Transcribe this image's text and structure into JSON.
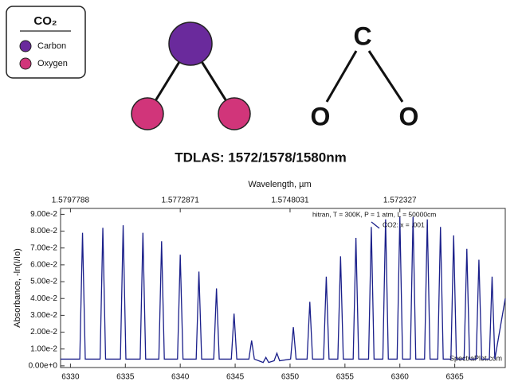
{
  "diagram": {
    "legend_title": "CO₂",
    "legend_items": [
      "Carbon",
      "Oxygen"
    ],
    "structure_atoms": [
      "C",
      "O",
      "O"
    ]
  },
  "chart_data": {
    "type": "line",
    "title": "TDLAS: 1572/1578/1580nm",
    "x2_label": "Wavelength, µm",
    "y_label": "Absorbance, -ln(I/Io)",
    "annotation": "hitran, T = 300K, P = 1 atm, L = 50000cm",
    "watermark": "SpectraPlot.com",
    "legend": "top-right",
    "x": [
      6329.1,
      6330.85,
      6331.1,
      6331.35,
      6332.7,
      6332.95,
      6333.2,
      6334.55,
      6334.8,
      6335.05,
      6336.35,
      6336.6,
      6336.85,
      6338.05,
      6338.3,
      6338.55,
      6339.75,
      6340.0,
      6340.25,
      6341.45,
      6341.7,
      6341.95,
      6343.05,
      6343.3,
      6343.55,
      6344.65,
      6344.9,
      6345.15,
      6346.25,
      6346.5,
      6346.75,
      6347.55,
      6347.8,
      6348.05,
      6348.55,
      6348.8,
      6349.05,
      6350.05,
      6350.3,
      6350.55,
      6351.55,
      6351.8,
      6352.05,
      6353.05,
      6353.3,
      6353.55,
      6354.35,
      6354.6,
      6354.85,
      6355.75,
      6356.0,
      6356.25,
      6357.15,
      6357.4,
      6357.65,
      6358.45,
      6358.7,
      6358.95,
      6359.75,
      6360.0,
      6360.25,
      6360.95,
      6361.2,
      6361.45,
      6362.25,
      6362.5,
      6362.75,
      6363.45,
      6363.7,
      6363.95,
      6364.65,
      6364.9,
      6365.15,
      6365.85,
      6366.1,
      6366.35,
      6366.95,
      6367.2,
      6367.45,
      6368.15,
      6368.4,
      6368.65,
      6369.6
    ],
    "series": [
      {
        "name": "CO2: x = .001",
        "color": "#1a1f8a",
        "values": [
          0.004,
          0.004,
          0.079,
          0.004,
          0.004,
          0.082,
          0.004,
          0.004,
          0.0835,
          0.004,
          0.004,
          0.079,
          0.004,
          0.004,
          0.074,
          0.004,
          0.004,
          0.066,
          0.004,
          0.004,
          0.056,
          0.004,
          0.004,
          0.046,
          0.004,
          0.004,
          0.031,
          0.004,
          0.004,
          0.015,
          0.004,
          0.002,
          0.005,
          0.002,
          0.003,
          0.0075,
          0.003,
          0.004,
          0.023,
          0.004,
          0.004,
          0.038,
          0.004,
          0.004,
          0.053,
          0.004,
          0.004,
          0.065,
          0.004,
          0.004,
          0.076,
          0.004,
          0.004,
          0.0825,
          0.004,
          0.004,
          0.087,
          0.004,
          0.004,
          0.0885,
          0.004,
          0.004,
          0.0885,
          0.004,
          0.004,
          0.087,
          0.004,
          0.004,
          0.0825,
          0.004,
          0.004,
          0.0775,
          0.004,
          0.004,
          0.0695,
          0.004,
          0.004,
          0.063,
          0.004,
          0.004,
          0.053,
          0.004,
          0.04
        ]
      }
    ],
    "xlim": [
      6329.1,
      6369.6
    ],
    "xticks": [
      6330,
      6335,
      6340,
      6345,
      6350,
      6355,
      6360,
      6365
    ],
    "x2ticks": [
      {
        "value": 6330,
        "label": "1.5797788"
      },
      {
        "value": 6340,
        "label": "1.5772871"
      },
      {
        "value": 6350,
        "label": "1.5748031"
      },
      {
        "value": 6360,
        "label": "1.572327"
      }
    ],
    "ylim": [
      -0.001,
      0.0935
    ],
    "yticks": [
      {
        "value": 0,
        "label": "0.00e+0"
      },
      {
        "value": 0.01,
        "label": "1.00e-2"
      },
      {
        "value": 0.02,
        "label": "2.00e-2"
      },
      {
        "value": 0.03,
        "label": "3.00e-2"
      },
      {
        "value": 0.04,
        "label": "4.00e-2"
      },
      {
        "value": 0.05,
        "label": "5.00e-2"
      },
      {
        "value": 0.06,
        "label": "6.00e-2"
      },
      {
        "value": 0.07,
        "label": "7.00e-2"
      },
      {
        "value": 0.08,
        "label": "8.00e-2"
      },
      {
        "value": 0.09,
        "label": "9.00e-2"
      }
    ]
  }
}
